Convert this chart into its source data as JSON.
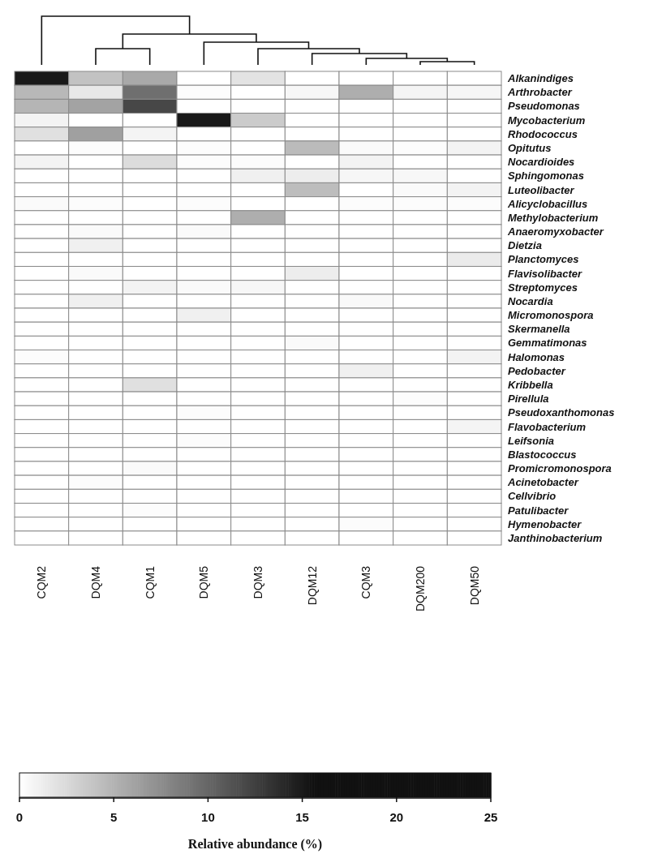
{
  "chart_data": {
    "type": "heatmap",
    "clabel": "Relative abundance (%)",
    "categories": [
      "CQM2",
      "DQM4",
      "CQM1",
      "DQM5",
      "DQM3",
      "DQM12",
      "CQM3",
      "DQM200",
      "DQM50"
    ],
    "y_categories": [
      "Alkanindiges",
      "Arthrobacter",
      "Pseudomonas",
      "Mycobacterium",
      "Rhodococcus",
      "Opitutus",
      "Nocardioides",
      "Sphingomonas",
      "Luteolibacter",
      "Alicyclobacillus",
      "Methylobacterium",
      "Anaeromyxobacter",
      "Dietzia",
      "Planctomyces",
      "Flavisolibacter",
      "Streptomyces",
      "Nocardia",
      "Micromonospora",
      "Skermanella",
      "Gemmatimonas",
      "Halomonas",
      "Pedobacter",
      "Kribbella",
      "Pirellula",
      "Pseudoxanthomonas",
      "Flavobacterium",
      "Leifsonia",
      "Blastococcus",
      "Promicromonospora",
      "Acinetobacter",
      "Cellvibrio",
      "Patulibacter",
      "Hymenobacter",
      "Janthinobacterium"
    ],
    "cells": [
      [
        15,
        4,
        5.6,
        0,
        1.8,
        0,
        0,
        0,
        0
      ],
      [
        4.6,
        1.5,
        9.4,
        0.2,
        0,
        0.5,
        5.3,
        0.7,
        0.6
      ],
      [
        4.8,
        6,
        12,
        0,
        0,
        0,
        0,
        0,
        0
      ],
      [
        0.8,
        0,
        0,
        15,
        3.4,
        0,
        0,
        0,
        0
      ],
      [
        2,
        6.2,
        0.7,
        0,
        0,
        0,
        0,
        0,
        0
      ],
      [
        0,
        0.2,
        0,
        0.2,
        0,
        4.4,
        0.3,
        0.2,
        0.8
      ],
      [
        0.8,
        0,
        2.3,
        0.2,
        0.2,
        0,
        0.8,
        0,
        0
      ],
      [
        0,
        0,
        0,
        0,
        1,
        1.2,
        0.6,
        0.5,
        0
      ],
      [
        0,
        0,
        0,
        0,
        0,
        4.3,
        0,
        0.3,
        0.8
      ],
      [
        0.3,
        0.2,
        0,
        0.2,
        0,
        0,
        0.2,
        0.2,
        0.2
      ],
      [
        0,
        0,
        0,
        0,
        5.3,
        0,
        0,
        0,
        0
      ],
      [
        0,
        0.3,
        0,
        0.3,
        0,
        0,
        0,
        0,
        0
      ],
      [
        0,
        1,
        0,
        0,
        0,
        0,
        0,
        0,
        0
      ],
      [
        0,
        0,
        0,
        0,
        0,
        0,
        0,
        0,
        1.3
      ],
      [
        0,
        0.3,
        0,
        0,
        0,
        1.2,
        0,
        0,
        0
      ],
      [
        0,
        0,
        0.8,
        0.3,
        0.5,
        0,
        0,
        0,
        0
      ],
      [
        0,
        1,
        0,
        0,
        0,
        0,
        0.4,
        0,
        0
      ],
      [
        0,
        0,
        0,
        1,
        0,
        0,
        0,
        0,
        0
      ],
      [
        0,
        0,
        0,
        0,
        0,
        0,
        0,
        0,
        0
      ],
      [
        0,
        0,
        0,
        0,
        0,
        0.3,
        0,
        0,
        0
      ],
      [
        0.2,
        0,
        0,
        0,
        0,
        0,
        0,
        0,
        0.8
      ],
      [
        0,
        0,
        0,
        0,
        0,
        0,
        1,
        0,
        0
      ],
      [
        0,
        0,
        2,
        0,
        0,
        0,
        0,
        0,
        0
      ],
      [
        0,
        0,
        0,
        0,
        0,
        0,
        0,
        0.2,
        0
      ],
      [
        0,
        0,
        0,
        0.2,
        0,
        0,
        0,
        0,
        0
      ],
      [
        0,
        0,
        0,
        0,
        0,
        0,
        0,
        0,
        0.7
      ],
      [
        0,
        0,
        0,
        0.2,
        0,
        0,
        0,
        0,
        0
      ],
      [
        0,
        0,
        0,
        0,
        0,
        0,
        0,
        0,
        0
      ],
      [
        0,
        0,
        0.3,
        0,
        0,
        0,
        0,
        0,
        0
      ],
      [
        0,
        0.2,
        0,
        0,
        0,
        0,
        0,
        0,
        0
      ],
      [
        0,
        0,
        0,
        0,
        0,
        0,
        0,
        0,
        0
      ],
      [
        0,
        0,
        0.2,
        0,
        0,
        0,
        0,
        0,
        0
      ],
      [
        0,
        0,
        0,
        0,
        0,
        0,
        0.2,
        0,
        0
      ],
      [
        0,
        0,
        0,
        0,
        0,
        0,
        0,
        0,
        0
      ]
    ],
    "clim": [
      0,
      25
    ],
    "cticks": [
      0,
      5,
      10,
      15,
      20,
      25
    ]
  }
}
